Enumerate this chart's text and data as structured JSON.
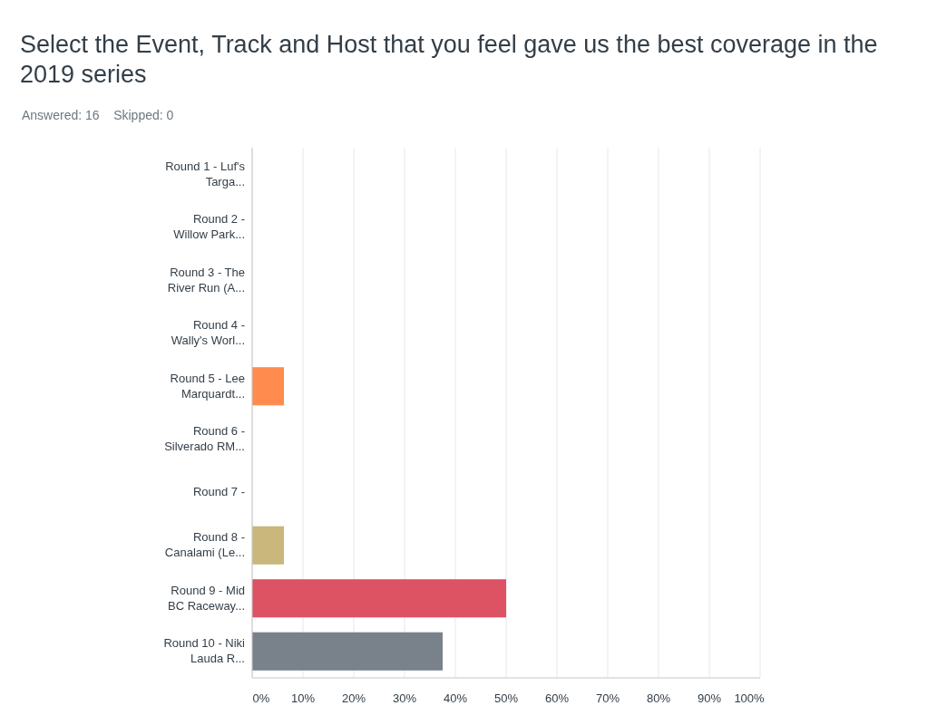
{
  "chart_data": {
    "type": "bar",
    "orientation": "horizontal",
    "title": "Select the Event, Track and Host that you feel gave us the best coverage in the 2019 series",
    "subtitle": "Answered: 16    Skipped: 0",
    "categories": [
      "Round 1 - Luf's Targa...",
      "Round 2 - Willow Park...",
      "Round 3 - The River Run (A...",
      "Round 4 - Wally's Worl...",
      "Round 5 - Lee Marquardt...",
      "Round 6 - Silverado RM...",
      "Round 7 -",
      "Round 8 - Canalami (Le...",
      "Round 9 - Mid BC Raceway...",
      "Round 10 - Niki Lauda R..."
    ],
    "values": [
      0,
      0,
      0,
      0,
      6.25,
      0,
      0,
      6.25,
      50,
      37.5
    ],
    "colors": [
      "#00bf6f",
      "#507cb6",
      "#f9be00",
      "#6bc8cd",
      "#ff8b4f",
      "#7f6cab",
      "#a7d06a",
      "#c9b77b",
      "#dd5363",
      "#79828a"
    ],
    "xlim": [
      0,
      100
    ],
    "xticks": [
      {
        "value": 0,
        "label": "0%"
      },
      {
        "value": 10,
        "label": "10%"
      },
      {
        "value": 20,
        "label": "20%"
      },
      {
        "value": 30,
        "label": "30%"
      },
      {
        "value": 40,
        "label": "40%"
      },
      {
        "value": 50,
        "label": "50%"
      },
      {
        "value": 60,
        "label": "60%"
      },
      {
        "value": 70,
        "label": "70%"
      },
      {
        "value": 80,
        "label": "80%"
      },
      {
        "value": 90,
        "label": "90%"
      },
      {
        "value": 100,
        "label": "100%"
      }
    ],
    "grid": "x"
  }
}
